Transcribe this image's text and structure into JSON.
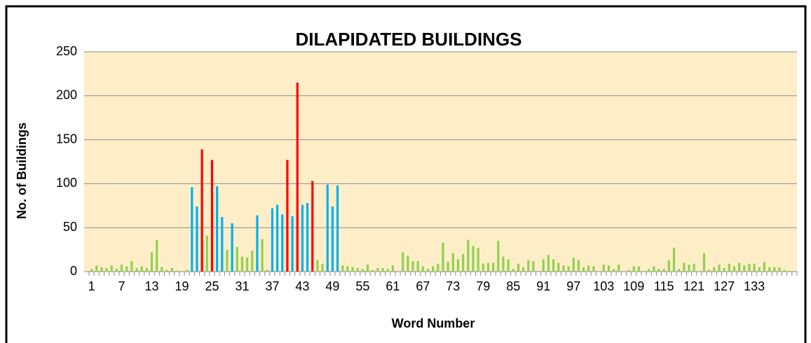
{
  "chart_data": {
    "type": "bar",
    "title": "DILAPIDATED BUILDINGS",
    "x_label": "Word Number",
    "y_label": "No. of Buildings",
    "categories": [
      "1",
      null,
      null,
      null,
      null,
      null,
      "7",
      null,
      null,
      null,
      null,
      null,
      "13",
      null,
      null,
      null,
      null,
      null,
      "19",
      null,
      null,
      null,
      null,
      null,
      "25",
      null,
      null,
      null,
      null,
      null,
      "31",
      null,
      null,
      null,
      null,
      null,
      "37",
      null,
      null,
      null,
      null,
      null,
      "43",
      null,
      null,
      null,
      null,
      null,
      "49",
      null,
      null,
      null,
      null,
      null,
      "55",
      null,
      null,
      null,
      null,
      null,
      "61",
      null,
      null,
      null,
      null,
      null,
      "67",
      null,
      null,
      null,
      null,
      null,
      "73",
      null,
      null,
      null,
      null,
      null,
      "79",
      null,
      null,
      null,
      null,
      null,
      "85",
      null,
      null,
      null,
      null,
      null,
      "91",
      null,
      null,
      null,
      null,
      null,
      "97",
      null,
      null,
      null,
      null,
      null,
      "103",
      null,
      null,
      null,
      null,
      null,
      "109",
      null,
      null,
      null,
      null,
      null,
      "115",
      null,
      null,
      null,
      null,
      null,
      "121",
      null,
      null,
      null,
      null,
      null,
      "127",
      null,
      null,
      null,
      null,
      null,
      "133",
      null,
      null,
      null,
      null,
      null,
      null,
      null,
      null
    ],
    "values": [
      3,
      7,
      5,
      4,
      7,
      3,
      8,
      6,
      12,
      4,
      6,
      4,
      22,
      36,
      5,
      2,
      4,
      1,
      0,
      2,
      96,
      74,
      139,
      41,
      127,
      97,
      62,
      25,
      55,
      28,
      17,
      16,
      24,
      64,
      37,
      2,
      72,
      76,
      65,
      127,
      63,
      215,
      76,
      78,
      103,
      13,
      9,
      99,
      74,
      98,
      7,
      6,
      5,
      4,
      3,
      8,
      2,
      4,
      4,
      3,
      7,
      0,
      22,
      18,
      12,
      12,
      6,
      3,
      6,
      9,
      33,
      11,
      21,
      14,
      20,
      36,
      29,
      27,
      9,
      10,
      10,
      35,
      17,
      14,
      3,
      9,
      5,
      13,
      12,
      0,
      14,
      19,
      14,
      10,
      7,
      6,
      16,
      13,
      5,
      7,
      6,
      0,
      8,
      7,
      3,
      8,
      0,
      2,
      6,
      6,
      0,
      3,
      6,
      3,
      3,
      13,
      27,
      3,
      10,
      8,
      9,
      0,
      21,
      2,
      5,
      8,
      4,
      9,
      6,
      10,
      7,
      9,
      9,
      5,
      11,
      5,
      5,
      5,
      2,
      1,
      0
    ],
    "colors": [
      "#92d050",
      "#92d050",
      "#92d050",
      "#92d050",
      "#92d050",
      "#92d050",
      "#92d050",
      "#92d050",
      "#92d050",
      "#92d050",
      "#92d050",
      "#92d050",
      "#92d050",
      "#92d050",
      "#92d050",
      "#92d050",
      "#92d050",
      "#92d050",
      "#92d050",
      "#92d050",
      "#00b0f0",
      "#00b0f0",
      "#ff0000",
      "#92d050",
      "#ff0000",
      "#00b0f0",
      "#00b0f0",
      "#92d050",
      "#00b0f0",
      "#92d050",
      "#92d050",
      "#92d050",
      "#92d050",
      "#00b0f0",
      "#92d050",
      "#92d050",
      "#00b0f0",
      "#00b0f0",
      "#00b0f0",
      "#ff0000",
      "#00b0f0",
      "#ff0000",
      "#00b0f0",
      "#00b0f0",
      "#ff0000",
      "#92d050",
      "#92d050",
      "#00b0f0",
      "#00b0f0",
      "#00b0f0",
      "#92d050",
      "#92d050",
      "#92d050",
      "#92d050",
      "#92d050",
      "#92d050",
      "#92d050",
      "#92d050",
      "#92d050",
      "#92d050",
      "#92d050",
      "#92d050",
      "#92d050",
      "#92d050",
      "#92d050",
      "#92d050",
      "#92d050",
      "#92d050",
      "#92d050",
      "#92d050",
      "#92d050",
      "#92d050",
      "#92d050",
      "#92d050",
      "#92d050",
      "#92d050",
      "#92d050",
      "#92d050",
      "#92d050",
      "#92d050",
      "#92d050",
      "#92d050",
      "#92d050",
      "#92d050",
      "#92d050",
      "#92d050",
      "#92d050",
      "#92d050",
      "#92d050",
      "#92d050",
      "#92d050",
      "#92d050",
      "#92d050",
      "#92d050",
      "#92d050",
      "#92d050",
      "#92d050",
      "#92d050",
      "#92d050",
      "#92d050",
      "#92d050",
      "#92d050",
      "#92d050",
      "#92d050",
      "#92d050",
      "#92d050",
      "#92d050",
      "#92d050",
      "#92d050",
      "#92d050",
      "#92d050",
      "#92d050",
      "#92d050",
      "#92d050",
      "#92d050",
      "#92d050",
      "#92d050",
      "#92d050",
      "#92d050",
      "#92d050",
      "#92d050",
      "#92d050",
      "#92d050",
      "#92d050",
      "#92d050",
      "#92d050",
      "#92d050",
      "#92d050",
      "#92d050",
      "#92d050",
      "#92d050",
      "#92d050",
      "#92d050",
      "#92d050",
      "#92d050",
      "#92d050",
      "#92d050",
      "#92d050",
      "#92d050",
      "#92d050",
      "#92d050"
    ],
    "ylim": [
      0,
      250
    ],
    "yticks": [
      0,
      50,
      100,
      150,
      200,
      250
    ],
    "grid": true,
    "background": "#fdeec8"
  }
}
